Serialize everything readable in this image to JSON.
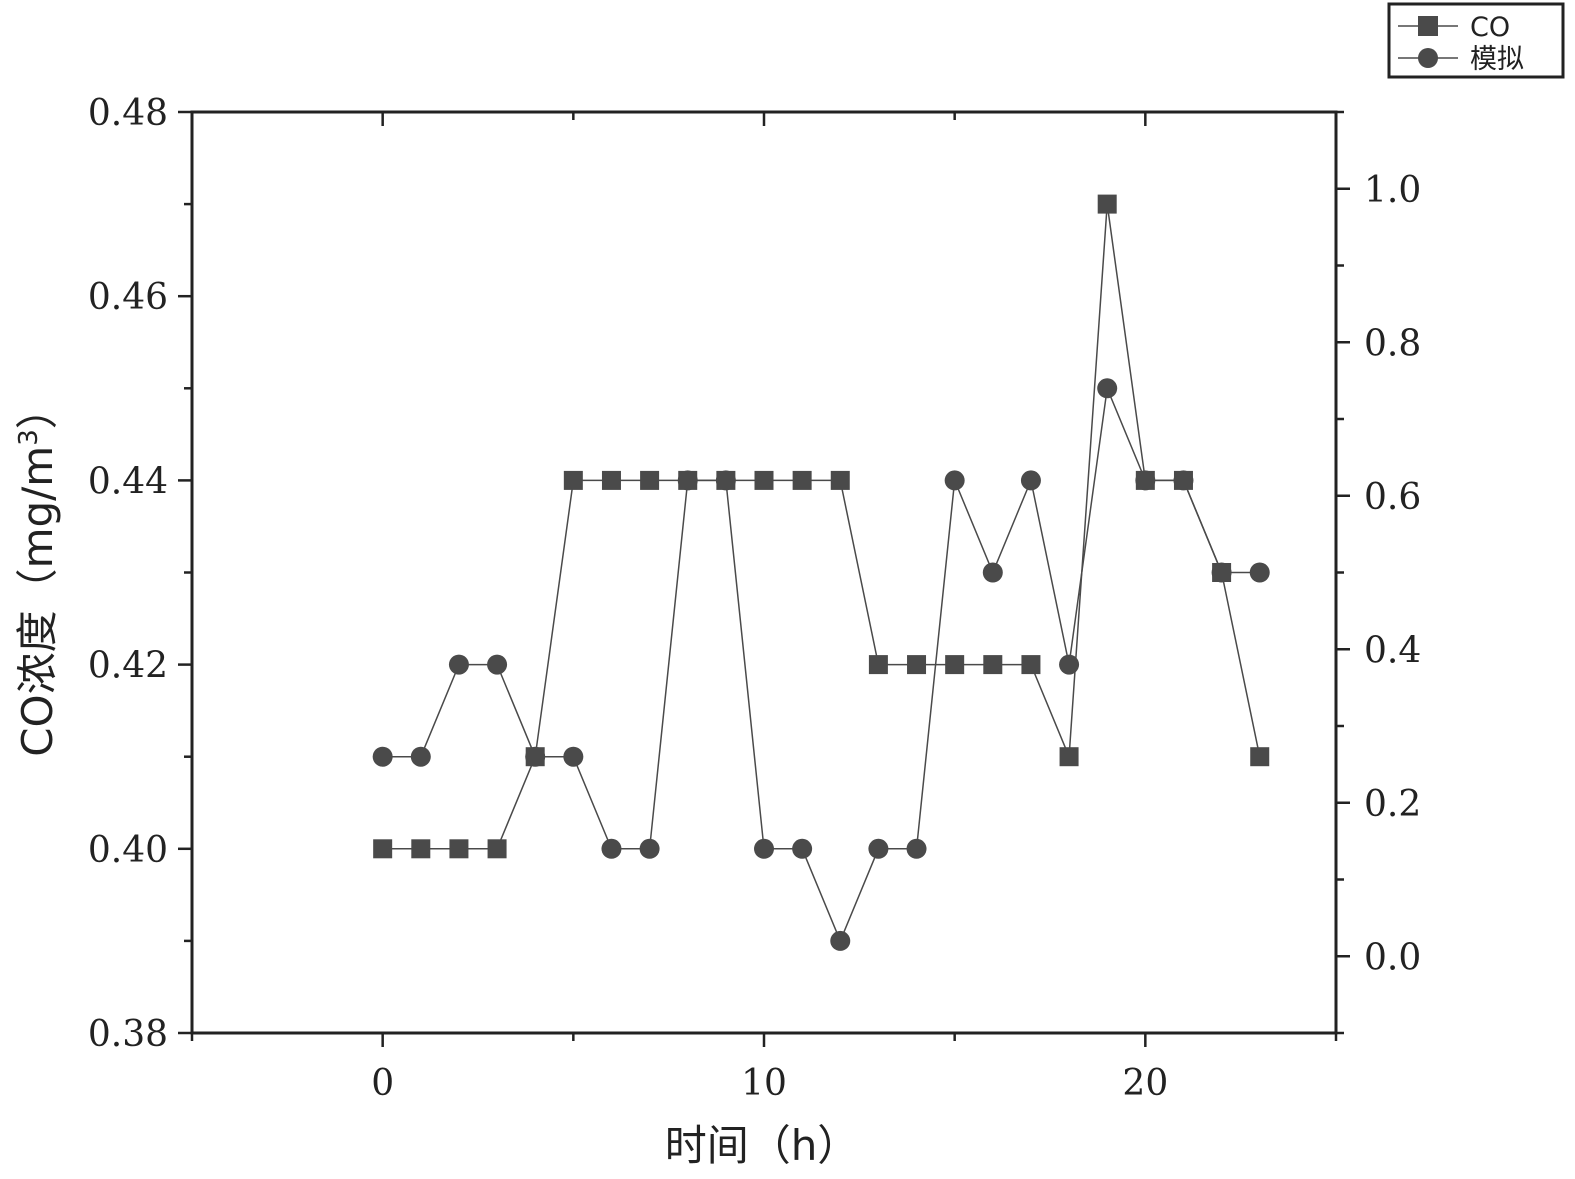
{
  "chart_data": {
    "type": "line",
    "xlabel": "时间（h）",
    "ylabel_prefix": "CO浓度（mg/m",
    "ylabel_sup": "3",
    "ylabel_suffix": "）",
    "x_ticks": [
      "0",
      "10",
      "20"
    ],
    "x_tick_values": [
      0,
      10,
      20
    ],
    "xlim": [
      -5,
      25
    ],
    "y_left_ticks": [
      "0.38",
      "0.40",
      "0.42",
      "0.44",
      "0.46",
      "0.48"
    ],
    "y_left_tick_values": [
      0.38,
      0.4,
      0.42,
      0.44,
      0.46,
      0.48
    ],
    "ylim_left": [
      0.38,
      0.48
    ],
    "y_right_ticks": [
      "0.0",
      "0.2",
      "0.4",
      "0.6",
      "0.8",
      "1.0"
    ],
    "y_right_tick_values": [
      0.0,
      0.2,
      0.4,
      0.6,
      0.8,
      1.0
    ],
    "ylim_right": [
      -0.1,
      1.1
    ],
    "grid": false,
    "legend_position": "top-right",
    "color": "#4a4a4a",
    "series": [
      {
        "name": "CO",
        "marker": "square",
        "axis": "left",
        "x": [
          0,
          1,
          2,
          3,
          4,
          5,
          6,
          7,
          8,
          9,
          10,
          11,
          12,
          13,
          14,
          15,
          16,
          17,
          18,
          19,
          20,
          21,
          22,
          23
        ],
        "values": [
          0.4,
          0.4,
          0.4,
          0.4,
          0.41,
          0.44,
          0.44,
          0.44,
          0.44,
          0.44,
          0.44,
          0.44,
          0.44,
          0.42,
          0.42,
          0.42,
          0.42,
          0.42,
          0.41,
          0.47,
          0.44,
          0.44,
          0.43,
          0.41
        ]
      },
      {
        "name": "模拟",
        "marker": "circle",
        "axis": "left",
        "x": [
          0,
          1,
          2,
          3,
          4,
          5,
          6,
          7,
          8,
          9,
          10,
          11,
          12,
          13,
          14,
          15,
          16,
          17,
          18,
          19,
          20,
          21,
          22,
          23
        ],
        "values": [
          0.41,
          0.41,
          0.42,
          0.42,
          0.41,
          0.41,
          0.4,
          0.4,
          0.44,
          0.44,
          0.4,
          0.4,
          0.39,
          0.4,
          0.4,
          0.44,
          0.43,
          0.44,
          0.42,
          0.45,
          0.44,
          0.44,
          0.43,
          0.43
        ]
      }
    ]
  }
}
